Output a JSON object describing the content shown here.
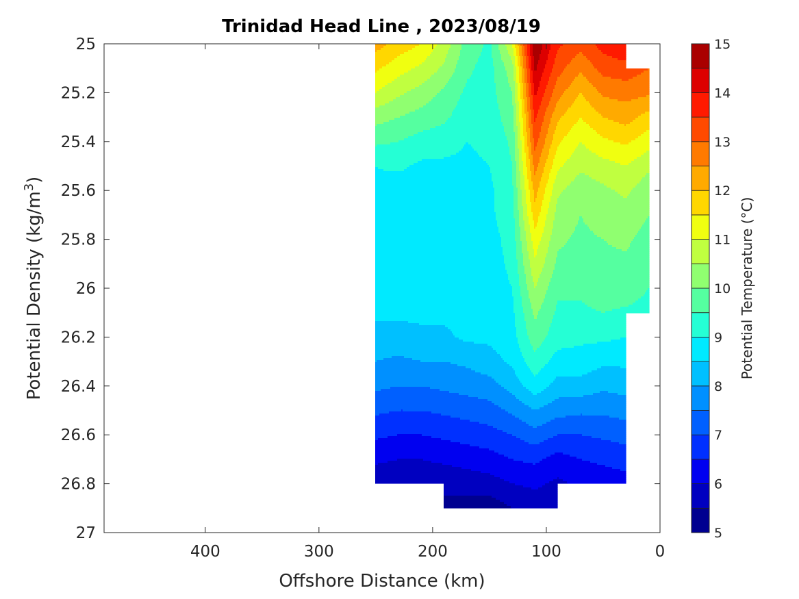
{
  "chart_data": {
    "type": "heatmap",
    "subtype": "filled-contour",
    "title": "Trinidad Head Line , 2023/08/19",
    "xlabel": "Offshore Distance (km)",
    "ylabel": "Potential Density (kg/m³)",
    "xlim": [
      489,
      0
    ],
    "x_reversed": true,
    "ylim": [
      27,
      25
    ],
    "y_reversed": true,
    "xticks": [
      400,
      300,
      200,
      100,
      0
    ],
    "yticks": [
      25,
      25.2,
      25.4,
      25.6,
      25.8,
      26,
      26.2,
      26.4,
      26.6,
      26.8,
      27
    ],
    "ytick_labels": [
      "25",
      "25.2",
      "25.4",
      "25.6",
      "25.8",
      "26",
      "26.2",
      "26.4",
      "26.6",
      "26.8",
      "27"
    ],
    "grid": false,
    "colorbar": {
      "label": "Potential Temperature (°C)",
      "range": [
        5,
        15
      ],
      "levels_step": 0.5,
      "ticks": [
        "5",
        "6",
        "7",
        "8",
        "9",
        "10",
        "11",
        "12",
        "13",
        "14",
        "15"
      ],
      "colors": [
        "#000090",
        "#0000c0",
        "#0000f0",
        "#0030ff",
        "#0060ff",
        "#0090ff",
        "#00c0ff",
        "#00eaff",
        "#25ffd5",
        "#55ffa0",
        "#90ff70",
        "#c0ff40",
        "#f0ff10",
        "#ffd700",
        "#ffaa00",
        "#ff7a00",
        "#ff4a00",
        "#ff1a00",
        "#dd0000",
        "#aa0000"
      ]
    },
    "distance_km": [
      250,
      230,
      210,
      190,
      170,
      150,
      130,
      110,
      90,
      70,
      50,
      30,
      10
    ],
    "density": [
      25.0,
      25.1,
      25.2,
      25.3,
      25.4,
      25.5,
      25.6,
      25.7,
      25.8,
      25.9,
      26.0,
      26.1,
      26.2,
      26.3,
      26.4,
      26.5,
      26.6,
      26.7,
      26.8,
      26.9
    ],
    "temperature": [
      [
        12.2,
        11.6,
        11.0,
        10.2,
        9.6,
        9.0,
        8.9,
        8.8,
        8.8,
        8.7,
        8.6,
        8.6,
        8.3,
        8.0,
        7.6,
        7.1,
        6.6,
        6.1,
        5.6,
        null
      ],
      [
        11.8,
        11.2,
        10.6,
        10.0,
        9.5,
        9.1,
        8.7,
        8.7,
        8.7,
        8.7,
        8.7,
        8.6,
        8.3,
        7.9,
        7.5,
        7.0,
        6.5,
        6.0,
        5.5,
        null
      ],
      [
        11.5,
        10.9,
        10.3,
        9.8,
        9.3,
        8.9,
        8.8,
        8.8,
        8.7,
        8.7,
        8.7,
        8.6,
        8.4,
        8.0,
        7.5,
        7.0,
        6.5,
        6.0,
        5.6,
        null
      ],
      [
        10.8,
        10.4,
        9.9,
        9.6,
        9.2,
        8.9,
        8.8,
        8.8,
        8.8,
        8.7,
        8.7,
        8.6,
        8.4,
        8.0,
        7.6,
        7.1,
        6.6,
        6.1,
        5.6,
        5.4
      ],
      [
        9.8,
        9.6,
        9.4,
        9.2,
        9.0,
        8.9,
        8.8,
        8.8,
        8.8,
        8.8,
        8.7,
        8.7,
        8.6,
        8.1,
        7.7,
        7.2,
        6.7,
        6.2,
        5.7,
        5.3
      ],
      [
        9.4,
        9.3,
        9.3,
        9.2,
        9.1,
        9.0,
        8.9,
        8.9,
        8.8,
        8.8,
        8.8,
        8.7,
        8.6,
        8.3,
        7.8,
        7.3,
        6.8,
        6.3,
        5.8,
        5.2
      ],
      [
        11.0,
        10.3,
        10.0,
        9.8,
        9.6,
        9.5,
        9.4,
        9.3,
        9.2,
        9.1,
        9.0,
        8.9,
        8.8,
        8.6,
        8.2,
        7.6,
        7.0,
        6.5,
        6.0,
        5.5
      ],
      [
        15.0,
        14.6,
        14.1,
        13.6,
        13.2,
        12.7,
        12.2,
        11.8,
        11.3,
        10.9,
        10.5,
        10.1,
        9.8,
        9.3,
        8.8,
        8.0,
        7.3,
        6.6,
        6.1,
        5.7
      ],
      [
        13.6,
        13.2,
        12.7,
        12.1,
        11.6,
        11.1,
        10.6,
        10.3,
        10.1,
        9.9,
        9.6,
        9.4,
        9.2,
        8.8,
        8.3,
        7.7,
        7.0,
        6.3,
        5.9,
        5.6
      ],
      [
        13.2,
        12.6,
        12.0,
        11.5,
        11.0,
        10.6,
        10.2,
        10.0,
        9.9,
        9.8,
        9.6,
        9.4,
        9.1,
        8.8,
        8.3,
        7.6,
        7.0,
        6.5,
        6.1,
        null
      ],
      [
        13.7,
        13.2,
        12.6,
        12.0,
        11.4,
        10.8,
        10.4,
        10.2,
        10.0,
        9.9,
        9.8,
        9.5,
        9.1,
        8.6,
        8.1,
        7.6,
        7.1,
        6.6,
        6.2,
        null
      ],
      [
        14.0,
        13.3,
        12.7,
        12.2,
        11.6,
        11.0,
        10.6,
        10.3,
        10.1,
        9.9,
        9.8,
        9.4,
        9.0,
        8.6,
        8.2,
        7.7,
        7.2,
        6.7,
        6.3,
        null
      ],
      [
        null,
        13.0,
        12.6,
        11.8,
        11.2,
        10.6,
        10.2,
        10.0,
        9.8,
        9.6,
        9.5,
        9.3,
        null,
        null,
        null,
        null,
        null,
        null,
        null,
        null
      ]
    ]
  }
}
